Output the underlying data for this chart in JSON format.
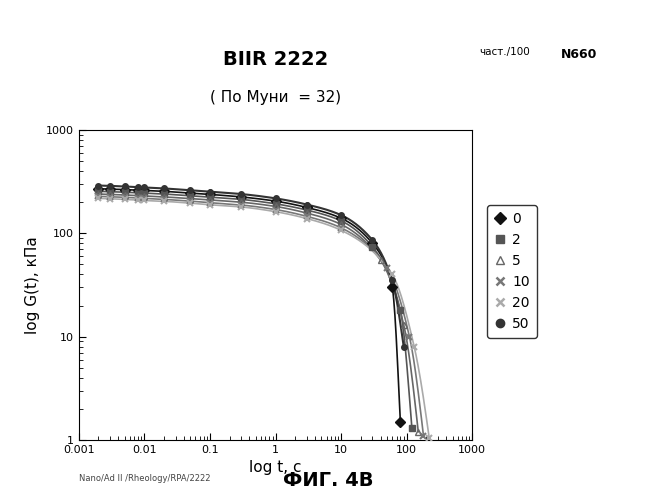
{
  "title_line1": "BIIR 2222",
  "title_line2": "( По Муни  = 32)",
  "xlabel": "log t, с",
  "ylabel": "log G(t), кПа",
  "legend_header1": "част./100",
  "legend_header2": "N660",
  "legend_labels": [
    "0",
    "2",
    "5",
    "10",
    "20",
    "50"
  ],
  "watermark": "Nano/Ad II /Rheology/RPA/2222",
  "figure_caption": "ФИГ. 4В",
  "background_color": "#ffffff",
  "series": [
    {
      "label": "0",
      "marker": "D",
      "color": "#111111",
      "lw": 1.2,
      "x_pts": [
        0.002,
        0.003,
        0.005,
        0.008,
        0.01,
        0.02,
        0.05,
        0.1,
        0.3,
        1,
        3,
        10,
        30,
        60,
        80
      ],
      "y_pts": [
        270,
        268,
        265,
        262,
        260,
        255,
        245,
        238,
        225,
        205,
        178,
        140,
        80,
        30,
        1.5
      ]
    },
    {
      "label": "2",
      "marker": "s",
      "color": "#555555",
      "lw": 1.2,
      "x_pts": [
        0.002,
        0.003,
        0.005,
        0.008,
        0.01,
        0.02,
        0.05,
        0.1,
        0.3,
        1,
        3,
        10,
        30,
        80,
        120
      ],
      "y_pts": [
        255,
        253,
        250,
        247,
        245,
        240,
        231,
        224,
        213,
        193,
        168,
        132,
        74,
        18,
        1.3
      ]
    },
    {
      "label": "5",
      "marker": "^",
      "color": "#666666",
      "lw": 1.2,
      "x_pts": [
        0.002,
        0.003,
        0.005,
        0.008,
        0.01,
        0.02,
        0.05,
        0.1,
        0.3,
        1,
        3,
        10,
        40,
        90,
        150
      ],
      "y_pts": [
        240,
        238,
        235,
        232,
        230,
        225,
        217,
        210,
        200,
        182,
        157,
        122,
        55,
        13,
        1.2
      ]
    },
    {
      "label": "10",
      "marker": "x",
      "color": "#777777",
      "lw": 1.2,
      "x_pts": [
        0.002,
        0.003,
        0.005,
        0.008,
        0.01,
        0.02,
        0.05,
        0.1,
        0.3,
        1,
        3,
        10,
        50,
        110,
        180
      ],
      "y_pts": [
        228,
        226,
        223,
        220,
        218,
        213,
        205,
        198,
        188,
        170,
        146,
        113,
        46,
        10,
        1.1
      ]
    },
    {
      "label": "20",
      "marker": "x",
      "color": "#aaaaaa",
      "lw": 1.2,
      "x_pts": [
        0.002,
        0.003,
        0.005,
        0.008,
        0.01,
        0.02,
        0.05,
        0.1,
        0.3,
        1,
        3,
        10,
        60,
        130,
        220
      ],
      "y_pts": [
        218,
        216,
        213,
        210,
        208,
        204,
        196,
        189,
        180,
        162,
        139,
        107,
        40,
        8,
        1.05
      ]
    },
    {
      "label": "50",
      "marker": "o",
      "color": "#333333",
      "lw": 1.5,
      "x_pts": [
        0.002,
        0.003,
        0.005,
        0.008,
        0.01,
        0.02,
        0.05,
        0.1,
        0.3,
        1,
        3,
        10,
        30,
        60,
        90
      ],
      "y_pts": [
        290,
        288,
        284,
        280,
        278,
        272,
        261,
        253,
        240,
        218,
        190,
        150,
        86,
        35,
        8
      ]
    }
  ]
}
